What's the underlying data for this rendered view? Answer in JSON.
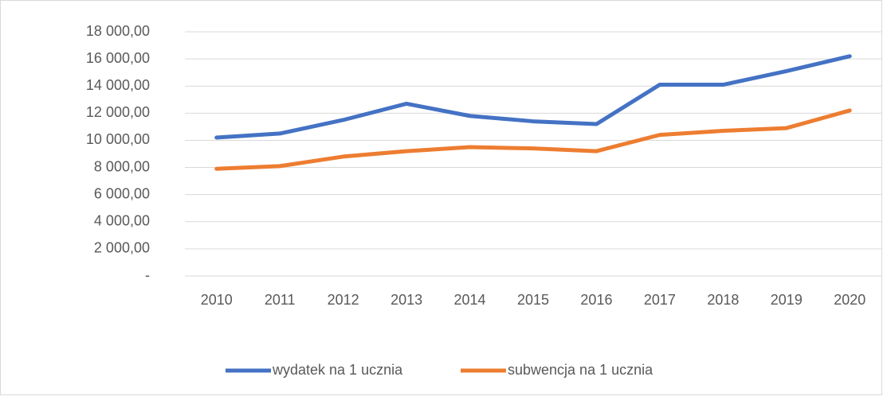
{
  "chart_data": {
    "type": "line",
    "categories": [
      "2010",
      "2011",
      "2012",
      "2013",
      "2014",
      "2015",
      "2016",
      "2017",
      "2018",
      "2019",
      "2020"
    ],
    "series": [
      {
        "name": "wydatek na 1 ucznia",
        "color": "#4472c4",
        "values": [
          10200,
          10500,
          11500,
          12700,
          11800,
          11400,
          11200,
          14100,
          14100,
          15100,
          16200
        ]
      },
      {
        "name": "subwencja na 1 ucznia",
        "color": "#ed7d31",
        "values": [
          7900,
          8100,
          8800,
          9200,
          9500,
          9400,
          9200,
          10400,
          10700,
          10900,
          12200
        ]
      }
    ],
    "ylim": [
      0,
      18000
    ],
    "yticks": [
      {
        "value": 0,
        "label": "-"
      },
      {
        "value": 2000,
        "label": "2 000,00"
      },
      {
        "value": 4000,
        "label": "4 000,00"
      },
      {
        "value": 6000,
        "label": "6 000,00"
      },
      {
        "value": 8000,
        "label": "8 000,00"
      },
      {
        "value": 10000,
        "label": "10 000,00"
      },
      {
        "value": 12000,
        "label": "12 000,00"
      },
      {
        "value": 14000,
        "label": "14 000,00"
      },
      {
        "value": 16000,
        "label": "16 000,00"
      },
      {
        "value": 18000,
        "label": "18 000,00"
      }
    ],
    "grid": true,
    "legend": "bottom"
  }
}
